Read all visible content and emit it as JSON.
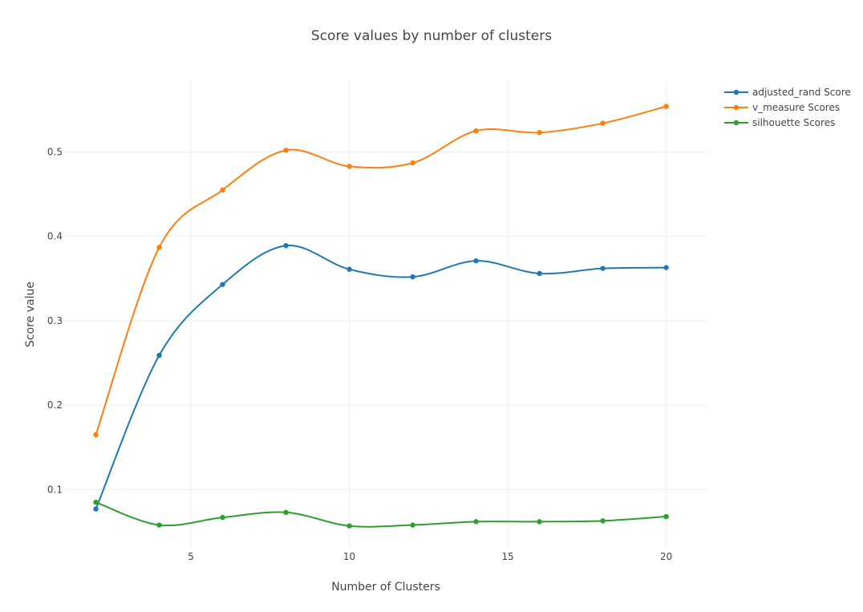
{
  "chart_data": {
    "type": "line",
    "title": "Score values by number of clusters",
    "xlabel": "Number of Clusters",
    "ylabel": "Score value",
    "xlim": [
      1.0,
      21.3
    ],
    "ylim": [
      0.031,
      0.585
    ],
    "xticks": [
      5,
      10,
      15,
      20
    ],
    "yticks": [
      0.1,
      0.2,
      0.3,
      0.4,
      0.5
    ],
    "grid": true,
    "line_shape": "spline",
    "legend_position": "top-right",
    "x": [
      2,
      4,
      6,
      8,
      10,
      12,
      14,
      16,
      18,
      20
    ],
    "series": [
      {
        "name": "adjusted_rand Score",
        "color": "#1f77b4",
        "values": [
          0.077,
          0.259,
          0.343,
          0.389,
          0.361,
          0.352,
          0.371,
          0.356,
          0.362,
          0.363
        ]
      },
      {
        "name": "v_measure Scores",
        "color": "#ff7f0e",
        "values": [
          0.165,
          0.387,
          0.455,
          0.502,
          0.483,
          0.487,
          0.525,
          0.523,
          0.534,
          0.554
        ]
      },
      {
        "name": "silhouette Scores",
        "color": "#2ca02c",
        "values": [
          0.085,
          0.058,
          0.067,
          0.073,
          0.057,
          0.058,
          0.062,
          0.062,
          0.063,
          0.068
        ]
      }
    ]
  }
}
